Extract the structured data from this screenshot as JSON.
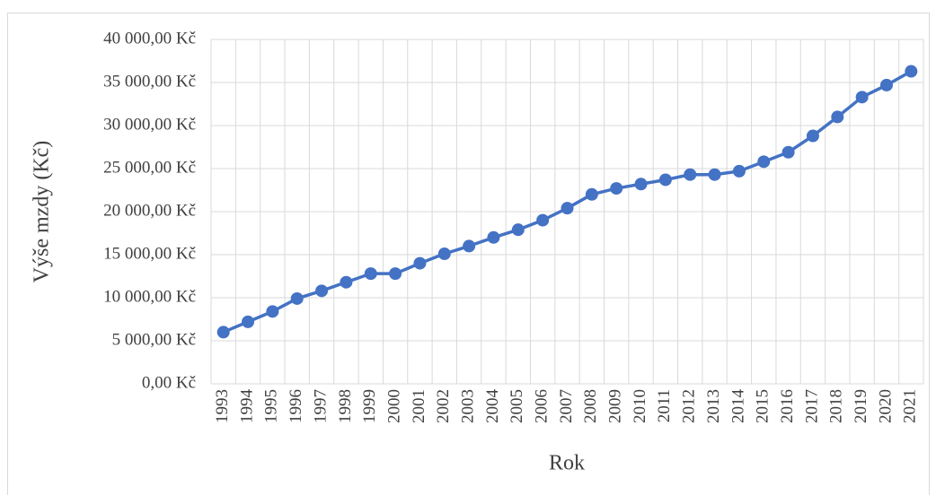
{
  "chart_data": {
    "type": "line",
    "x_label": "Rok",
    "y_label": "Výše mzdy (Kč)",
    "categories": [
      "1993",
      "1994",
      "1995",
      "1996",
      "1997",
      "1998",
      "1999",
      "2000",
      "2001",
      "2002",
      "2003",
      "2004",
      "2005",
      "2006",
      "2007",
      "2008",
      "2009",
      "2010",
      "2011",
      "2012",
      "2013",
      "2014",
      "2015",
      "2016",
      "2017",
      "2018",
      "2019",
      "2020",
      "2021"
    ],
    "values": [
      6000,
      7200,
      8400,
      9900,
      10800,
      11800,
      12800,
      12800,
      14000,
      15100,
      16000,
      17000,
      17900,
      19000,
      20400,
      22000,
      22700,
      23200,
      23700,
      24300,
      24300,
      24700,
      25800,
      26900,
      28800,
      31000,
      33300,
      34700,
      36300
    ],
    "color": "#4472c4",
    "ylim": [
      0,
      40000
    ],
    "yticks": [
      {
        "value": 0,
        "label": "0,00 Kč"
      },
      {
        "value": 5000,
        "label": "5 000,00 Kč"
      },
      {
        "value": 10000,
        "label": "10 000,00 Kč"
      },
      {
        "value": 15000,
        "label": "15 000,00 Kč"
      },
      {
        "value": 20000,
        "label": "20 000,00 Kč"
      },
      {
        "value": 25000,
        "label": "25 000,00 Kč"
      },
      {
        "value": 30000,
        "label": "30 000,00 Kč"
      },
      {
        "value": 35000,
        "label": "35 000,00 Kč"
      },
      {
        "value": 40000,
        "label": "40 000,00 Kč"
      }
    ],
    "grid": true
  }
}
